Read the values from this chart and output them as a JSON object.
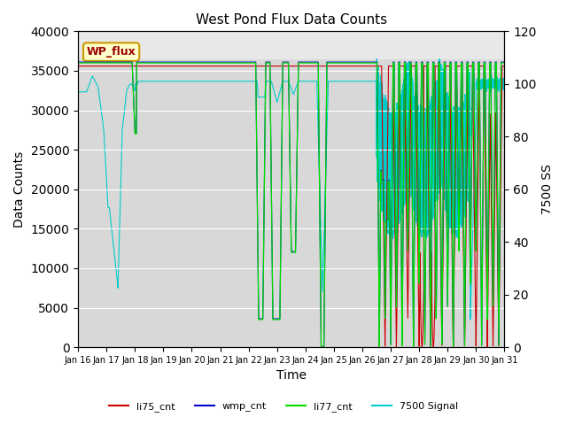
{
  "title": "West Pond Flux Data Counts",
  "xlabel": "Time",
  "ylabel_left": "Data Counts",
  "ylabel_right": "7500 SS",
  "ylim_left": [
    0,
    40000
  ],
  "ylim_right": [
    0,
    120
  ],
  "yticks_left": [
    0,
    5000,
    10000,
    15000,
    20000,
    25000,
    30000,
    35000,
    40000
  ],
  "yticks_right": [
    0,
    20,
    40,
    60,
    80,
    100,
    120
  ],
  "bg_color": "#d8d8d8",
  "box_label": "WP_flux",
  "box_facecolor": "#ffffcc",
  "box_edgecolor": "#cc9900",
  "box_textcolor": "#990000",
  "line_colors": {
    "li75_cnt": "#cc0000",
    "wmp_cnt": "#0000cc",
    "li77_cnt": "#00dd00",
    "signal": "#00cccc"
  },
  "legend_labels": [
    "li75_cnt",
    "wmp_cnt",
    "li77_cnt",
    "7500 Signal"
  ],
  "xtick_labels": [
    "Jan 16",
    "Jan 17",
    "Jan 18",
    "Jan 19",
    "Jan 20",
    "Jan 21",
    "Jan 22",
    "Jan 23",
    "Jan 24",
    "Jan 25",
    "Jan 26",
    "Jan 27",
    "Jan 28",
    "Jan 29",
    "Jan 30",
    "Jan 31"
  ]
}
